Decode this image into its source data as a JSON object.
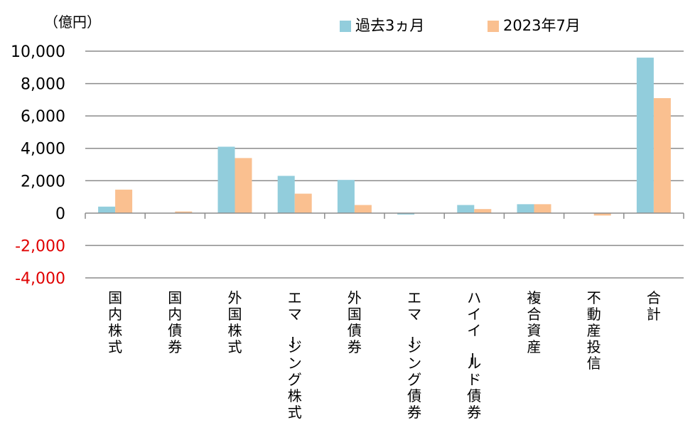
{
  "chart_data": {
    "type": "bar",
    "unit_label": "（億円）",
    "categories": [
      "国内株式",
      "国内債券",
      "外国株式",
      "エマージング株式",
      "外国債券",
      "エマージング債券",
      "ハイイールド債券",
      "複合資産",
      "不動産投信",
      "合計"
    ],
    "series": [
      {
        "name": "過去3ヵ月",
        "color": "#92CDDC",
        "values": [
          400,
          0,
          4100,
          2300,
          2050,
          -50,
          500,
          550,
          0,
          9600
        ]
      },
      {
        "name": "2023年7月",
        "color": "#FAC090",
        "values": [
          1450,
          100,
          3400,
          1200,
          500,
          0,
          250,
          550,
          -150,
          7100
        ]
      }
    ],
    "ylim": [
      -4000,
      10000
    ],
    "yticks": [
      10000,
      8000,
      6000,
      4000,
      2000,
      0,
      -2000,
      -4000
    ],
    "ytick_labels": [
      "10,000",
      "8,000",
      "6,000",
      "4,000",
      "2,000",
      "0",
      "-2,000",
      "-4,000"
    ],
    "negative_tick_color": "#E00000",
    "grid": true,
    "legend_position": "top"
  }
}
